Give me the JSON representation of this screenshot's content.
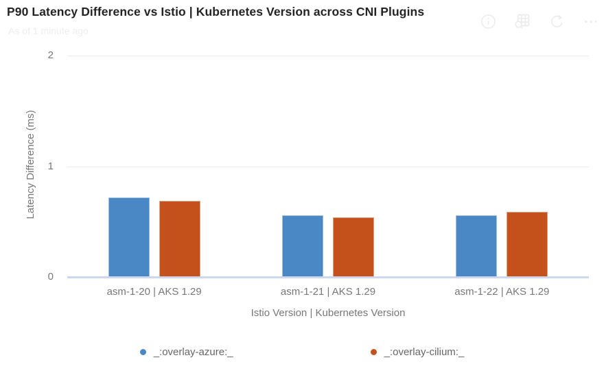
{
  "header": {
    "title": "P90 Latency Difference vs Istio | Kubernetes Version across CNI Plugins",
    "subtitle": "As of 1 minute ago",
    "icons": [
      "info-icon",
      "show-data-table-icon",
      "refresh-icon",
      "more-options-icon"
    ]
  },
  "chart_data": {
    "type": "bar",
    "title": "P90 Latency Difference vs Istio | Kubernetes Version across CNI Plugins",
    "categories": [
      "asm-1-20 | AKS 1.29",
      "asm-1-21 | AKS 1.29",
      "asm-1-22 | AKS 1.29"
    ],
    "series": [
      {
        "name": "_:overlay-azure:_",
        "color": "#4a87c5",
        "border_color": "#9fbedd",
        "values": [
          0.72,
          0.56,
          0.56
        ]
      },
      {
        "name": "_:overlay-cilium:_",
        "color": "#c4511c",
        "border_color": "#dda183",
        "values": [
          0.69,
          0.54,
          0.59
        ]
      }
    ],
    "xlabel": "Istio Version | Kubernetes Version",
    "ylabel": "Latency Difference (ms)",
    "ylim": [
      0,
      2
    ],
    "yticks": [
      0,
      1,
      2
    ],
    "grid": true,
    "legend_position": "bottom"
  },
  "theme": {
    "title_color": "#252423",
    "subtitle_color": "#eeeeee",
    "axis_text_color": "#777777",
    "legend_text_color": "#666666",
    "gridline_color": "#ebebeb",
    "baseline_color": "#ccd6ec",
    "header_icon_color": "#ececec"
  }
}
